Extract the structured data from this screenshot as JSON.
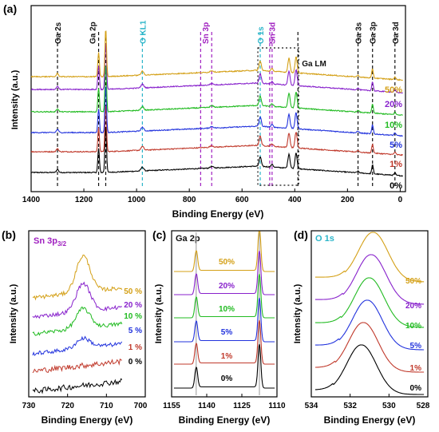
{
  "panels": {
    "a": {
      "letter": "(a)",
      "xlabel": "Binding Energy (eV)",
      "ylabel": "Intensity (a.u.)",
      "xticks": [
        "1400",
        "1200",
        "1000",
        "800",
        "600",
        "400",
        "200",
        "0"
      ],
      "tick_values": [
        1400,
        1200,
        1000,
        800,
        600,
        400,
        200,
        0
      ],
      "xlim": [
        1400,
        -20
      ],
      "peak_labels": [
        {
          "text": "Ga 2s",
          "x": 1300,
          "color": "#111111"
        },
        {
          "text": "Ga 2p",
          "x": 1150,
          "color": "#111111"
        },
        {
          "text": "O KL1",
          "x": 978,
          "color": "#2bb5c9"
        },
        {
          "text": "Sn 3p",
          "x": 740,
          "color": "#a020c0"
        },
        {
          "text": "O 1s",
          "x": 531,
          "color": "#2bb5c9"
        },
        {
          "text": "Sn 3d",
          "x": 487,
          "color": "#a020c0"
        },
        {
          "text": "Ga LM",
          "x": 400,
          "color": "#111111"
        },
        {
          "text": "Ga 3s",
          "x": 160,
          "color": "#111111"
        },
        {
          "text": "Ga 3p",
          "x": 105,
          "color": "#111111"
        },
        {
          "text": "Ga 3d",
          "x": 20,
          "color": "#111111"
        }
      ],
      "peak_lines": [
        {
          "x": 1300,
          "color": "#111111"
        },
        {
          "x": 1144,
          "color": "#111111"
        },
        {
          "x": 1117,
          "color": "#111111"
        },
        {
          "x": 978,
          "color": "#2bb5c9"
        },
        {
          "x": 757,
          "color": "#a020c0"
        },
        {
          "x": 715,
          "color": "#a020c0"
        },
        {
          "x": 531,
          "color": "#2bb5c9"
        },
        {
          "x": 495,
          "color": "#a020c0"
        },
        {
          "x": 486,
          "color": "#a020c0"
        },
        {
          "x": 388,
          "color": "#111111"
        },
        {
          "x": 160,
          "color": "#111111"
        },
        {
          "x": 105,
          "color": "#111111"
        },
        {
          "x": 20,
          "color": "#111111"
        }
      ],
      "ga_lm_box": [
        540,
        385
      ]
    },
    "b": {
      "letter": "(b)",
      "title": "Sn 3p3/2",
      "xlabel": "Binding Energy (eV)",
      "ylabel": "Intensity (a.u.)",
      "xticks": [
        "730",
        "720",
        "710",
        "700"
      ],
      "tick_values": [
        730,
        720,
        710,
        700
      ],
      "xlim": [
        730,
        700
      ]
    },
    "c": {
      "letter": "(c)",
      "title": "Ga 2p",
      "xlabel": "Binding Energy (eV)",
      "ylabel": "Intensity (a.u.)",
      "xticks": [
        "1155",
        "1140",
        "1125",
        "1110"
      ],
      "tick_values": [
        1155,
        1140,
        1125,
        1110
      ],
      "xlim": [
        1155,
        1110
      ]
    },
    "d": {
      "letter": "(d)",
      "title": "O 1s",
      "xlabel": "Binding Energy (eV)",
      "ylabel": "Intensity (a.u.)",
      "xticks": [
        "534",
        "532",
        "530",
        "528"
      ],
      "tick_values": [
        534,
        532,
        530,
        528
      ],
      "xlim": [
        534,
        528
      ]
    }
  },
  "chart_data": [
    {
      "type": "line",
      "title": "",
      "xlabel": "Binding Energy (eV)",
      "ylabel": "Intensity (a.u.)",
      "xlim": [
        1400,
        0
      ],
      "reversed_x": true,
      "series": [
        {
          "name": "0%",
          "color": "#000000"
        },
        {
          "name": "1%",
          "color": "#c0392b"
        },
        {
          "name": "5%",
          "color": "#2233dd"
        },
        {
          "name": "10%",
          "color": "#22bb22"
        },
        {
          "name": "20%",
          "color": "#8822cc"
        },
        {
          "name": "50%",
          "color": "#d4a017"
        }
      ],
      "peaks": [
        {
          "x": 1300,
          "h": 0.1,
          "w": 4
        },
        {
          "x": 1144,
          "h": 0.75,
          "w": 3
        },
        {
          "x": 1117,
          "h": 1.5,
          "w": 3
        },
        {
          "x": 978,
          "h": 0.12,
          "w": 5
        },
        {
          "x": 715,
          "h": 0.05,
          "w": 6
        },
        {
          "x": 531,
          "h": 0.3,
          "w": 4
        },
        {
          "x": 486,
          "h": 0.08,
          "w": 4
        },
        {
          "x": 422,
          "h": 0.45,
          "w": 4
        },
        {
          "x": 395,
          "h": 0.5,
          "w": 4
        },
        {
          "x": 160,
          "h": 0.05,
          "w": 4
        },
        {
          "x": 105,
          "h": 0.28,
          "w": 3
        },
        {
          "x": 20,
          "h": 0.08,
          "w": 3
        }
      ]
    },
    {
      "type": "line",
      "title": "Sn 3p3/2",
      "xlabel": "Binding Energy (eV)",
      "ylabel": "Intensity (a.u.)",
      "xlim": [
        730,
        700
      ],
      "reversed_x": true,
      "peak_center": 716,
      "series": [
        {
          "name": "0 %",
          "color": "#000000",
          "peak": 0.0
        },
        {
          "name": "1 %",
          "color": "#c0392b",
          "peak": 0.0
        },
        {
          "name": "5 %",
          "color": "#2233dd",
          "peak": 0.35
        },
        {
          "name": "10 %",
          "color": "#22bb22",
          "peak": 0.7
        },
        {
          "name": "20 %",
          "color": "#8822cc",
          "peak": 1.0
        },
        {
          "name": "50 %",
          "color": "#d4a017",
          "peak": 1.3
        }
      ]
    },
    {
      "type": "line",
      "title": "Ga 2p",
      "xlabel": "Binding Energy (eV)",
      "ylabel": "Intensity (a.u.)",
      "xlim": [
        1155,
        1110
      ],
      "reversed_x": true,
      "peaks": [
        1144.5,
        1117.5
      ],
      "series": [
        {
          "name": "0%",
          "color": "#000000"
        },
        {
          "name": "1%",
          "color": "#c0392b"
        },
        {
          "name": "5%",
          "color": "#2233dd"
        },
        {
          "name": "10%",
          "color": "#22bb22"
        },
        {
          "name": "20%",
          "color": "#8822cc"
        },
        {
          "name": "50%",
          "color": "#d4a017"
        }
      ]
    },
    {
      "type": "line",
      "title": "O 1s",
      "xlabel": "Binding Energy (eV)",
      "ylabel": "Intensity (a.u.)",
      "xlim": [
        534,
        528
      ],
      "reversed_x": true,
      "series": [
        {
          "name": "0%",
          "color": "#000000",
          "center": 531.4
        },
        {
          "name": "1%",
          "color": "#c0392b",
          "center": 531.3
        },
        {
          "name": "5%",
          "color": "#2233dd",
          "center": 531.1
        },
        {
          "name": "10%",
          "color": "#22bb22",
          "center": 531.0
        },
        {
          "name": "20%",
          "color": "#8822cc",
          "center": 530.9
        },
        {
          "name": "50%",
          "color": "#d4a017",
          "center": 530.8
        }
      ]
    }
  ]
}
